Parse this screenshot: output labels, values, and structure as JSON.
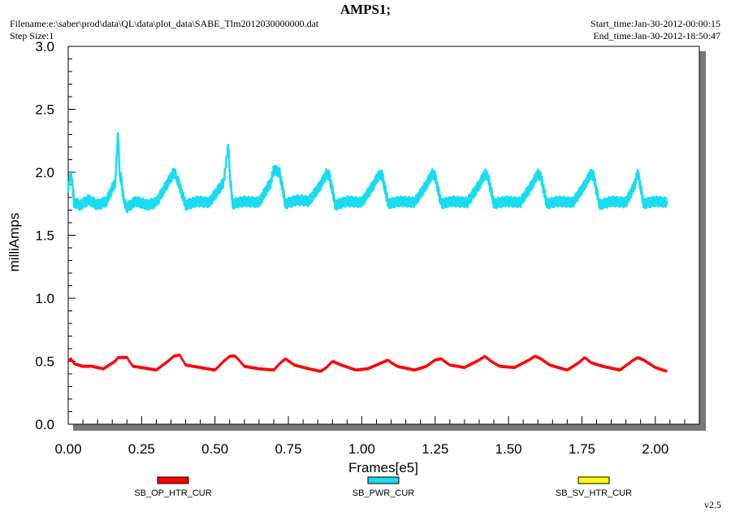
{
  "header": {
    "title": "AMPS1;",
    "filename": "Filename:e:\\saber\\prod\\data\\QL\\data\\plot_data\\SABE_Tlm2012030000000.dat",
    "step_size": "Step Size:1",
    "start_time": "Start_time:Jan-30-2012-00:00:15",
    "end_time": "End_time:Jan-30-2012-18:50:47",
    "version": "v2.5"
  },
  "chart_data": {
    "type": "line",
    "title": "AMPS1;",
    "xlabel": "Frames[e5]",
    "ylabel": "milliAmps",
    "xlim": [
      0.0,
      2.15
    ],
    "ylim": [
      0.0,
      3.0
    ],
    "x_ticks": [
      "0.00",
      "0.25",
      "0.50",
      "0.75",
      "1.00",
      "1.25",
      "1.50",
      "1.75",
      "2.00"
    ],
    "y_ticks": [
      "0.0",
      "0.5",
      "1.0",
      "1.5",
      "2.0",
      "2.5",
      "3.0"
    ],
    "grid": false,
    "legend_position": "bottom",
    "series": [
      {
        "name": "SB_OP_HTR_CUR",
        "color": "#ff0000",
        "x": [
          0.0,
          0.01,
          0.02,
          0.05,
          0.08,
          0.12,
          0.16,
          0.17,
          0.2,
          0.22,
          0.25,
          0.3,
          0.34,
          0.36,
          0.38,
          0.4,
          0.45,
          0.5,
          0.53,
          0.55,
          0.57,
          0.6,
          0.65,
          0.7,
          0.72,
          0.74,
          0.77,
          0.82,
          0.86,
          0.88,
          0.9,
          0.93,
          0.98,
          1.02,
          1.06,
          1.09,
          1.1,
          1.12,
          1.18,
          1.22,
          1.25,
          1.27,
          1.3,
          1.35,
          1.4,
          1.42,
          1.44,
          1.47,
          1.52,
          1.57,
          1.59,
          1.61,
          1.64,
          1.7,
          1.74,
          1.76,
          1.78,
          1.82,
          1.88,
          1.92,
          1.94,
          1.96,
          2.0,
          2.04
        ],
        "y": [
          0.5,
          0.52,
          0.48,
          0.46,
          0.46,
          0.44,
          0.5,
          0.53,
          0.53,
          0.46,
          0.45,
          0.43,
          0.5,
          0.54,
          0.55,
          0.47,
          0.45,
          0.43,
          0.5,
          0.54,
          0.54,
          0.46,
          0.44,
          0.43,
          0.48,
          0.52,
          0.47,
          0.44,
          0.42,
          0.45,
          0.5,
          0.47,
          0.43,
          0.44,
          0.48,
          0.51,
          0.49,
          0.46,
          0.43,
          0.46,
          0.51,
          0.52,
          0.47,
          0.45,
          0.51,
          0.54,
          0.5,
          0.46,
          0.45,
          0.51,
          0.54,
          0.52,
          0.47,
          0.43,
          0.49,
          0.53,
          0.49,
          0.46,
          0.43,
          0.5,
          0.53,
          0.51,
          0.45,
          0.42
        ]
      },
      {
        "name": "SB_PWR_CUR",
        "color": "#18dcf0",
        "x": [
          0.0,
          0.01,
          0.02,
          0.04,
          0.07,
          0.1,
          0.13,
          0.16,
          0.17,
          0.175,
          0.18,
          0.19,
          0.2,
          0.23,
          0.27,
          0.3,
          0.34,
          0.36,
          0.37,
          0.4,
          0.44,
          0.48,
          0.53,
          0.545,
          0.55,
          0.56,
          0.6,
          0.65,
          0.69,
          0.7,
          0.72,
          0.74,
          0.78,
          0.82,
          0.86,
          0.88,
          0.89,
          0.91,
          0.95,
          1.0,
          1.04,
          1.06,
          1.07,
          1.09,
          1.13,
          1.18,
          1.22,
          1.24,
          1.25,
          1.27,
          1.31,
          1.36,
          1.4,
          1.42,
          1.43,
          1.45,
          1.49,
          1.54,
          1.58,
          1.6,
          1.61,
          1.63,
          1.67,
          1.72,
          1.76,
          1.78,
          1.79,
          1.81,
          1.85,
          1.9,
          1.93,
          1.94,
          1.96,
          2.0,
          2.04
        ],
        "y": [
          1.88,
          2.0,
          1.76,
          1.74,
          1.78,
          1.74,
          1.77,
          1.92,
          2.32,
          1.98,
          1.95,
          1.76,
          1.72,
          1.77,
          1.74,
          1.76,
          1.92,
          2.0,
          1.96,
          1.74,
          1.77,
          1.76,
          1.92,
          2.22,
          2.0,
          1.75,
          1.77,
          1.76,
          1.92,
          2.02,
          2.0,
          1.75,
          1.78,
          1.77,
          1.9,
          1.99,
          1.97,
          1.74,
          1.77,
          1.76,
          1.9,
          1.99,
          1.97,
          1.75,
          1.77,
          1.76,
          1.9,
          1.99,
          1.97,
          1.75,
          1.77,
          1.76,
          1.9,
          1.99,
          1.97,
          1.75,
          1.77,
          1.76,
          1.9,
          1.99,
          1.97,
          1.75,
          1.77,
          1.76,
          1.9,
          1.99,
          1.97,
          1.74,
          1.77,
          1.76,
          1.9,
          2.01,
          1.75,
          1.77,
          1.76
        ]
      },
      {
        "name": "SB_SV_HTR_CUR",
        "color": "#ffff00",
        "x": [],
        "y": []
      }
    ]
  }
}
